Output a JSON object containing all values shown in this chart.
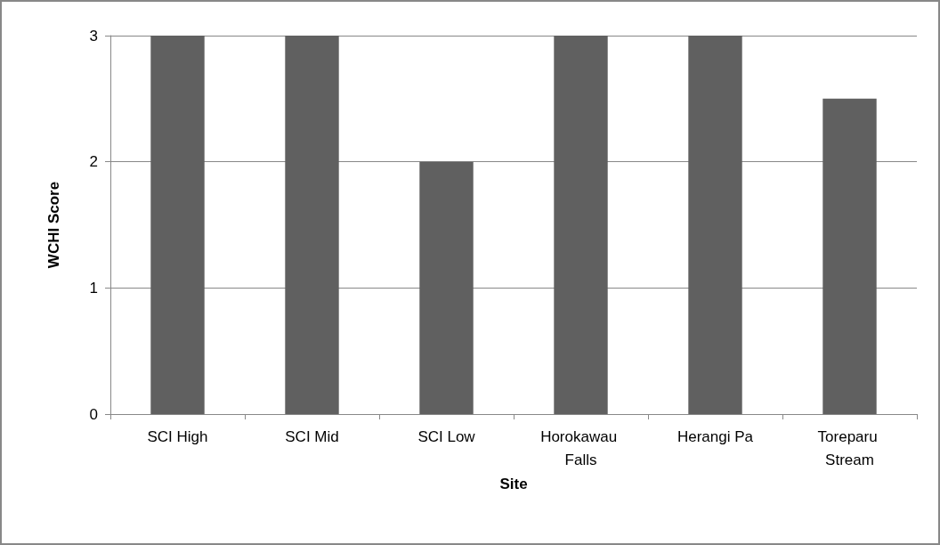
{
  "chart_data": {
    "type": "bar",
    "xlabel": "Site",
    "ylabel": "WCHI Score",
    "categories": [
      "SCI High",
      "SCI Mid",
      "SCI Low",
      "Horokawau Falls",
      "Herangi Pa",
      "Toreparu Stream"
    ],
    "values": [
      3,
      3,
      2,
      3,
      3,
      2.5
    ],
    "color": "#606060",
    "ylim": [
      0,
      3
    ],
    "yticks": [
      0,
      1,
      2,
      3
    ],
    "grid": "y"
  }
}
